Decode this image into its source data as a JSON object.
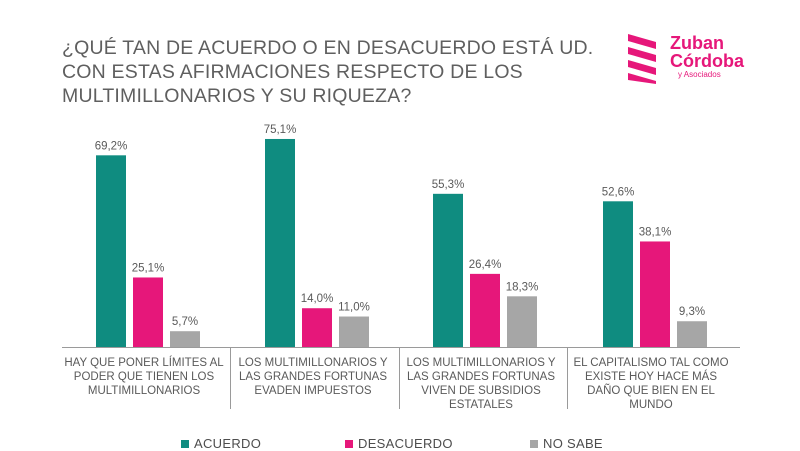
{
  "title": "¿QUÉ TAN DE ACUERDO O EN DESACUERDO ESTÁ UD. CON ESTAS AFIRMACIONES RESPECTO DE LOS MULTIMILLONARIOS Y SU RIQUEZA?",
  "logo": {
    "line1": "Zuban",
    "line2": "Córdoba",
    "line3": "y Asociados",
    "color": "#e6177a"
  },
  "chart_data": {
    "type": "bar",
    "title": "¿QUÉ TAN DE ACUERDO O EN DESACUERDO ESTÁ UD. CON ESTAS AFIRMACIONES RESPECTO DE LOS MULTIMILLONARIOS Y SU RIQUEZA?",
    "xlabel": "",
    "ylabel": "",
    "ylim": [
      0,
      80
    ],
    "grid": false,
    "legend_position": "bottom",
    "categories": [
      [
        "HAY QUE PONER LÍMITES AL",
        "PODER QUE TIENEN LOS",
        "MULTIMILLONARIOS"
      ],
      [
        "LOS MULTIMILLONARIOS Y",
        "LAS GRANDES FORTUNAS",
        "EVADEN IMPUESTOS"
      ],
      [
        "LOS MULTIMILLONARIOS Y",
        "LAS GRANDES FORTUNAS",
        "VIVEN DE SUBSIDIOS",
        "ESTATALES"
      ],
      [
        "EL CAPITALISMO TAL COMO",
        "EXISTE HOY HACE MÁS",
        "DAÑO QUE BIEN EN EL",
        "MUNDO"
      ]
    ],
    "series": [
      {
        "name": "ACUERDO",
        "color": "#0f8c80",
        "values": [
          69.2,
          75.1,
          55.3,
          52.6
        ],
        "labels": [
          "69,2%",
          "75,1%",
          "55,3%",
          "52,6%"
        ]
      },
      {
        "name": "DESACUERDO",
        "color": "#e6177a",
        "values": [
          25.1,
          14.0,
          26.4,
          38.1
        ],
        "labels": [
          "25,1%",
          "14,0%",
          "26,4%",
          "38,1%"
        ]
      },
      {
        "name": "NO SABE",
        "color": "#a6a6a6",
        "values": [
          5.7,
          11.0,
          18.3,
          9.3
        ],
        "labels": [
          "5,7%",
          "11,0%",
          "18,3%",
          "9,3%"
        ]
      }
    ]
  }
}
